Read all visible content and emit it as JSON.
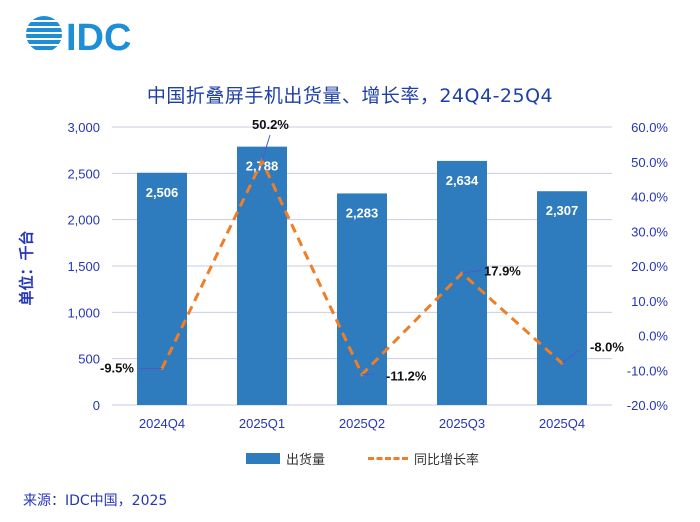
{
  "header": {
    "logo_text": "IDC",
    "logo_icon": "idc-globe-icon",
    "brand_color": "#1e8fd6"
  },
  "title": "中国折叠屏手机出货量、增长率，24Q4-25Q4",
  "source": "来源：IDC中国，2025",
  "chart_data": {
    "type": "bar",
    "title": "中国折叠屏手机出货量、增长率，24Q4-25Q4",
    "ylabel": "单位：千台",
    "categories": [
      "2024Q4",
      "2025Q1",
      "2025Q2",
      "2025Q3",
      "2025Q4"
    ],
    "series": [
      {
        "name": "出货量",
        "type": "bar",
        "axis": "left",
        "color": "#2e7bbe",
        "values": [
          2506,
          2788,
          2283,
          2634,
          2307
        ],
        "labels": [
          "2,506",
          "2,788",
          "2,283",
          "2,634",
          "2,307"
        ]
      },
      {
        "name": "同比增长率",
        "type": "line",
        "axis": "right",
        "color": "#f07e26",
        "dashed": true,
        "values": [
          -9.5,
          50.2,
          -11.2,
          17.9,
          -8.0
        ],
        "labels": [
          "-9.5%",
          "50.2%",
          "-11.2%",
          "17.9%",
          "-8.0%"
        ]
      }
    ],
    "ylim_left": [
      0,
      3000
    ],
    "yticks_left": [
      "0",
      "500",
      "1,000",
      "1,500",
      "2,000",
      "2,500",
      "3,000"
    ],
    "ylim_right": [
      -20,
      60
    ],
    "yticks_right": [
      "-20.0%",
      "-10.0%",
      "0.0%",
      "10.0%",
      "20.0%",
      "30.0%",
      "40.0%",
      "50.0%",
      "60.0%"
    ],
    "grid": true,
    "legend": "bottom"
  }
}
